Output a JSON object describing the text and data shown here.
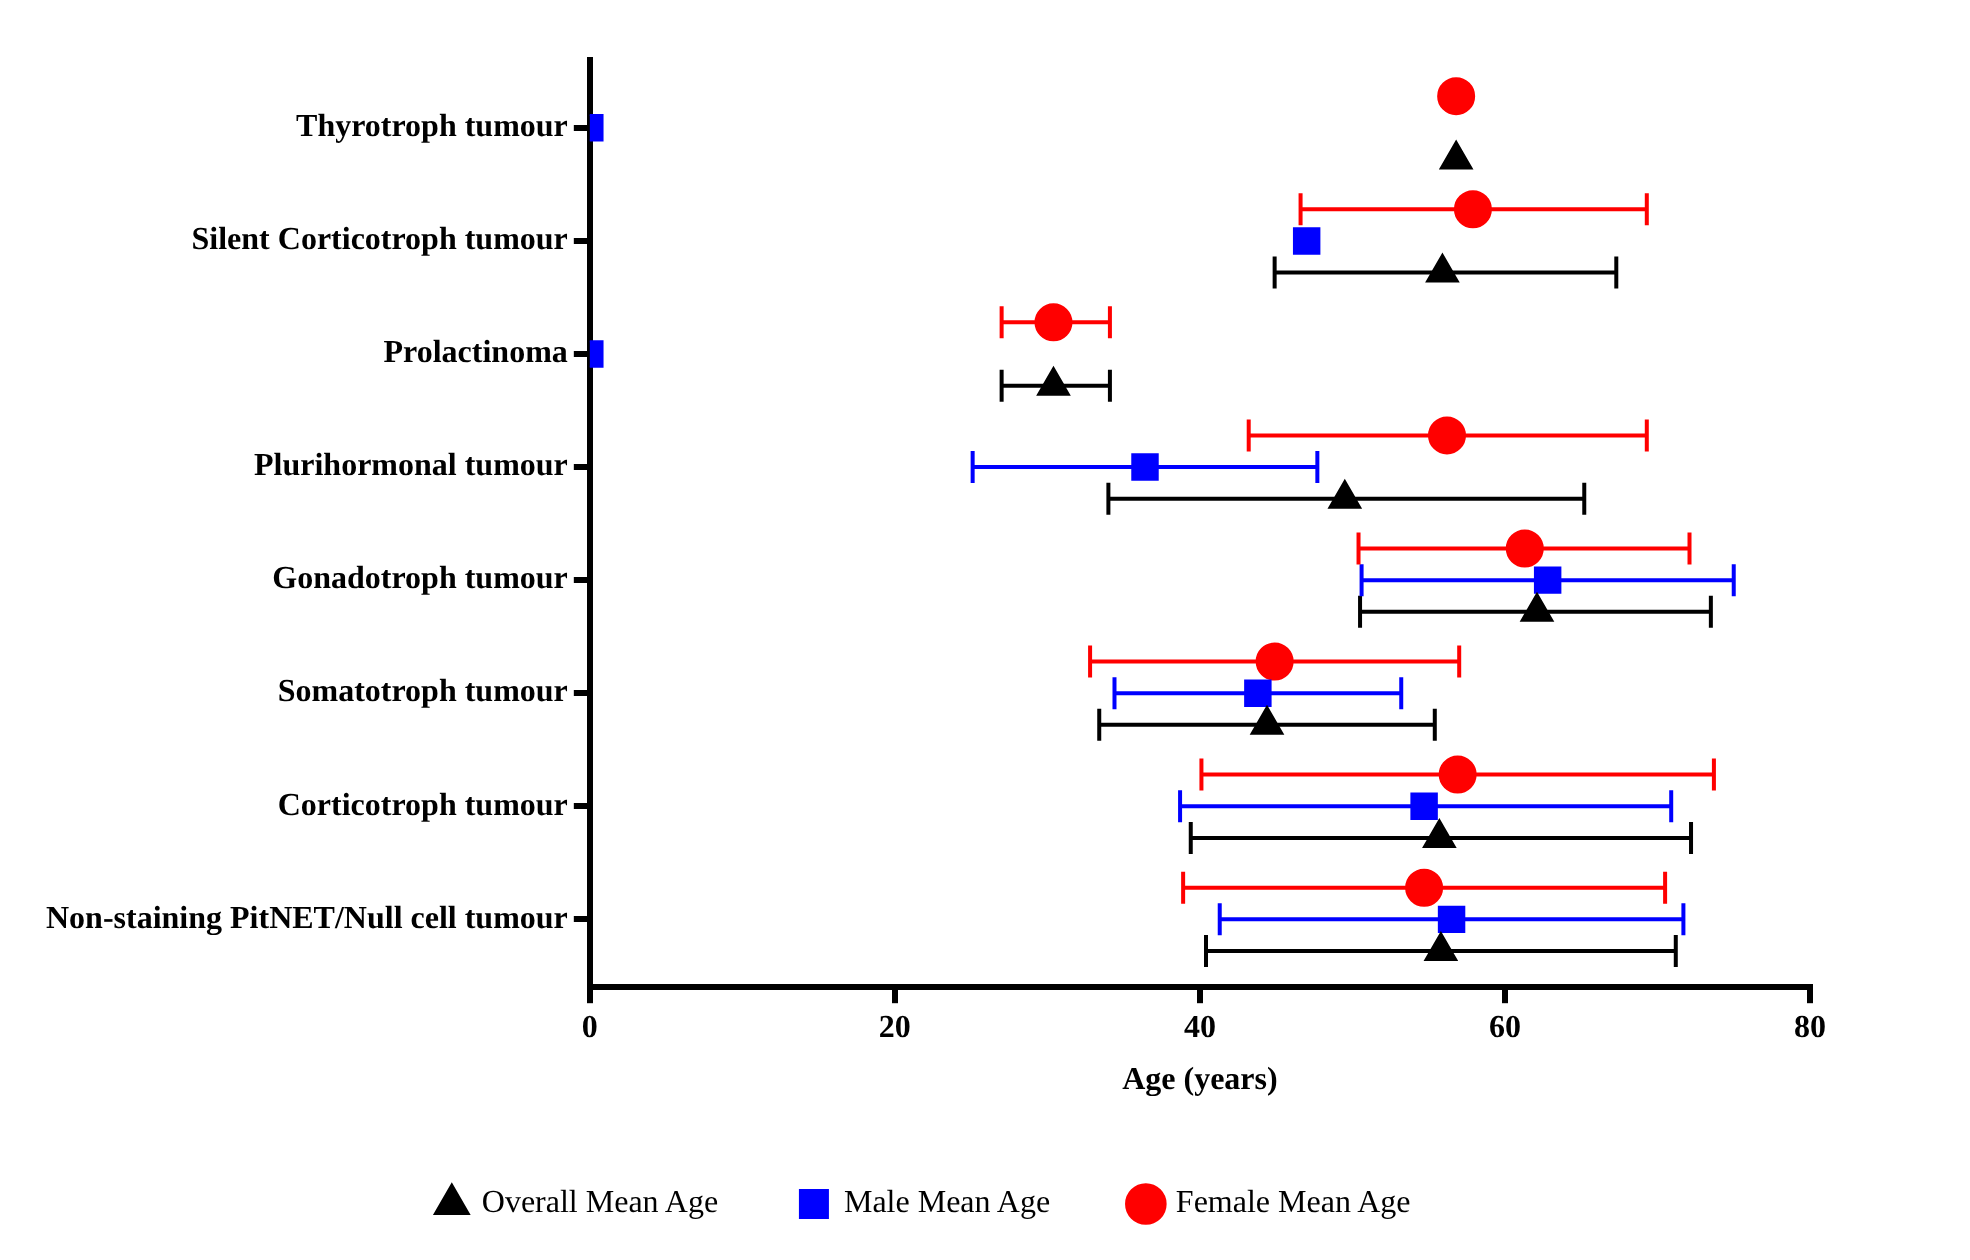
{
  "chart_data": {
    "type": "scatter",
    "orientation": "horizontal",
    "xlabel": "Age (years)",
    "xlim": [
      0,
      80
    ],
    "xticks": [
      0,
      20,
      40,
      60,
      80
    ],
    "grid": false,
    "legend": "bottom",
    "categories": [
      "Thyrotroph tumour",
      "Silent Corticotroph tumour",
      "Prolactinoma",
      "Plurihormonal tumour",
      "Gonadotroph tumour",
      "Somatotroph tumour",
      "Corticotroph tumour",
      "Non-staining PitNET/Null cell tumour"
    ],
    "series": [
      {
        "name": "Overall Mean Age",
        "color": "#000000",
        "marker": "triangle",
        "values": [
          56.8,
          55.9,
          30.4,
          49.5,
          62.1,
          44.4,
          55.7,
          55.8
        ],
        "errors": [
          null,
          [
            44.9,
            67.3
          ],
          [
            27,
            34.1
          ],
          [
            34,
            65.2
          ],
          [
            50.5,
            73.5
          ],
          [
            33.4,
            55.4
          ],
          [
            39.4,
            72.2
          ],
          [
            40.4,
            71.2
          ]
        ]
      },
      {
        "name": "Male Mean Age",
        "color": "#0000ff",
        "marker": "square",
        "values": [
          0,
          47,
          0,
          36.4,
          62.8,
          43.8,
          54.7,
          56.5
        ],
        "errors": [
          null,
          null,
          null,
          [
            25.1,
            47.7
          ],
          [
            50.6,
            75
          ],
          [
            34.4,
            53.2
          ],
          [
            38.7,
            70.9
          ],
          [
            41.3,
            71.7
          ]
        ]
      },
      {
        "name": "Female Mean Age",
        "color": "#ff0000",
        "marker": "circle",
        "values": [
          56.8,
          57.9,
          30.4,
          56.2,
          61.3,
          44.9,
          56.9,
          54.7
        ],
        "errors": [
          null,
          [
            46.6,
            69.3
          ],
          [
            27,
            34.1
          ],
          [
            43.2,
            69.3
          ],
          [
            50.4,
            72.1
          ],
          [
            32.8,
            57
          ],
          [
            40.1,
            73.7
          ],
          [
            38.9,
            70.5
          ]
        ]
      }
    ]
  }
}
